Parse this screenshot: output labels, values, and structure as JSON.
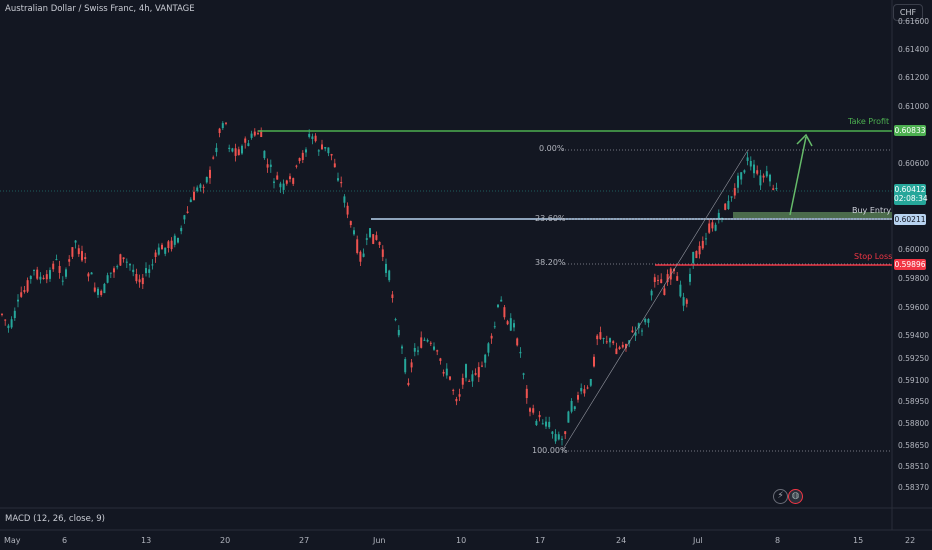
{
  "header": {
    "title": "Australian Dollar / Swiss Franc, 4h, VANTAGE",
    "currency": "CHF"
  },
  "macd_label": "MACD (12, 26, close, 9)",
  "price_axis": [
    "0.61600",
    "0.61400",
    "0.61200",
    "0.61000",
    "0.60833",
    "0.60600",
    "0.60412",
    "0.60211",
    "0.60000",
    "0.59896",
    "0.59800",
    "0.59600",
    "0.59400",
    "0.59250",
    "0.59100",
    "0.58950",
    "0.58800",
    "0.58650",
    "0.58510",
    "0.58370"
  ],
  "time_axis": [
    "May",
    "6",
    "13",
    "20",
    "27",
    "Jun",
    "10",
    "17",
    "24",
    "Jul",
    "8",
    "15",
    "22"
  ],
  "levels": {
    "take_profit": {
      "label": "Take Profit",
      "price": "0.60833",
      "color": "#4caf50"
    },
    "buy_entry": {
      "label": "Buy Entry",
      "price": "0.60211",
      "color": "#b8d3f0"
    },
    "stop_loss": {
      "label": "Stop Loss",
      "price": "0.59896",
      "color": "#f23645"
    },
    "current": {
      "price": "0.60412",
      "countdown": "02:08:34",
      "color": "#26a69a"
    }
  },
  "fib": [
    "0.00%",
    "23.60%",
    "38.20%",
    "100.00%"
  ],
  "colors": {
    "up": "#26a69a",
    "down": "#ef5350",
    "background": "#131722"
  },
  "icons": [
    "lightning-icon",
    "indicator-icon"
  ]
}
